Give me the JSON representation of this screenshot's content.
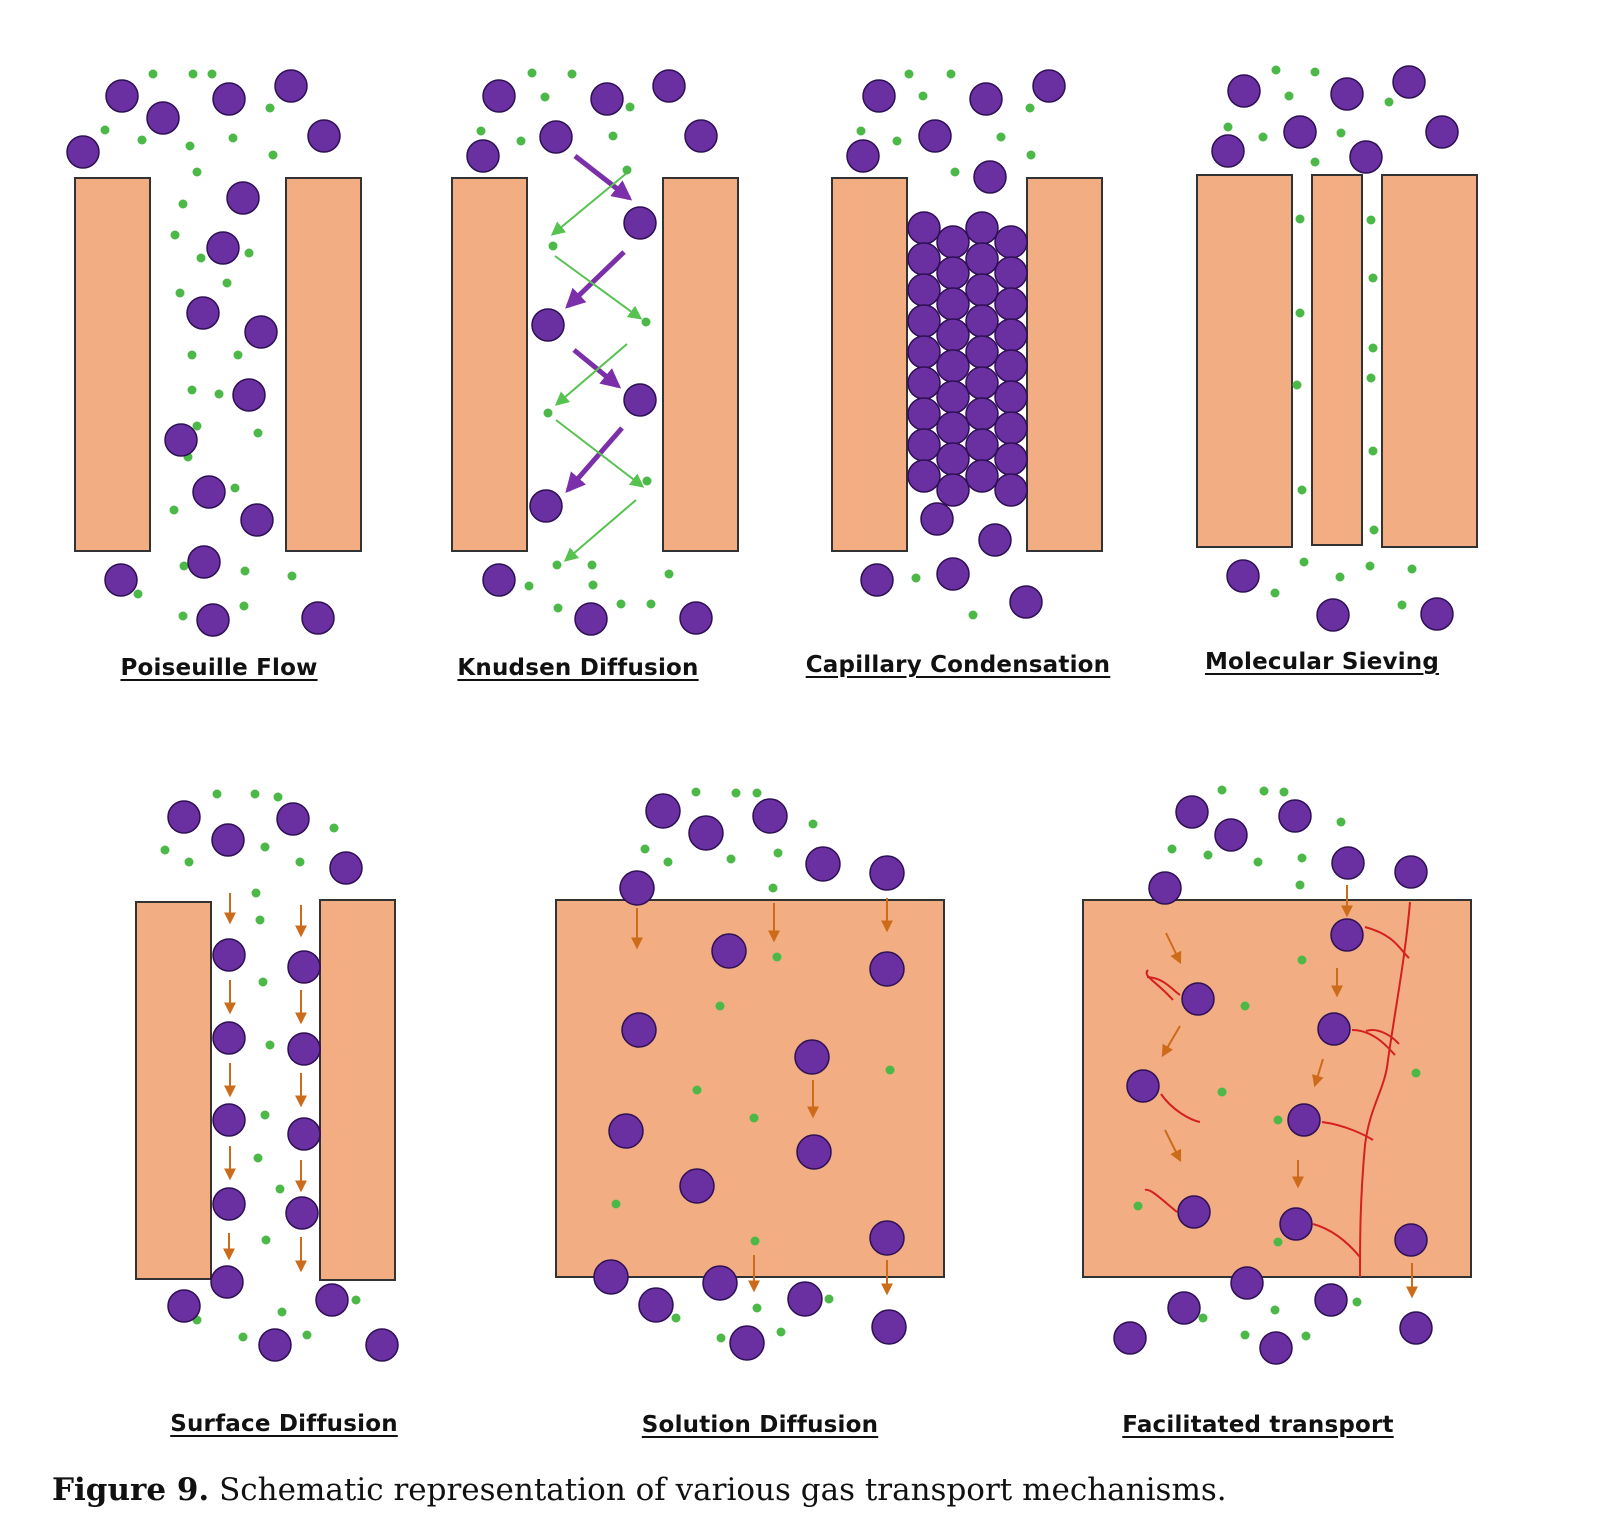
{
  "colors": {
    "membrane": "#f2ae82",
    "membrane_stroke": "#333333",
    "large_molecule": "#6a2fa0",
    "large_molecule_stroke": "#2e1054",
    "small_molecule": "#4cb848",
    "flux_arrow_small": "#56c24f",
    "flux_arrow_large": "#7b2fa8",
    "surface_arrow": "#cc6b1a",
    "carrier_line": "#d42020"
  },
  "icons": {
    "large_molecule": "purple-circle-icon",
    "small_molecule": "green-dot-icon",
    "flow_arrow": "arrow-icon"
  },
  "panels": [
    {
      "id": "poiseuille",
      "label": "Poiseuille Flow"
    },
    {
      "id": "knudsen",
      "label": "Knudsen Diffusion"
    },
    {
      "id": "capillary",
      "label": "Capillary Condensation"
    },
    {
      "id": "sieving",
      "label": "Molecular Sieving"
    },
    {
      "id": "surface",
      "label": "Surface Diffusion"
    },
    {
      "id": "solution",
      "label": "Solution Diffusion"
    },
    {
      "id": "facilitated",
      "label": "Facilitated transport"
    }
  ],
  "caption": {
    "prefix": "Figure 9.",
    "text": " Schematic representation of various gas transport mechanisms."
  }
}
